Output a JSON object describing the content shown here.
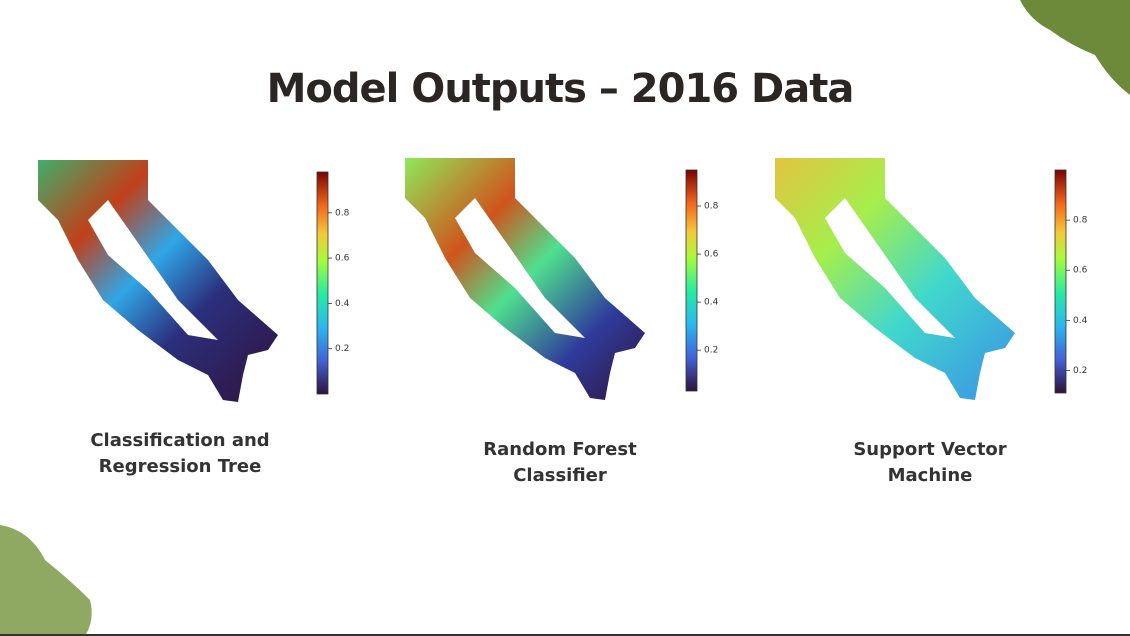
{
  "title": "Model Outputs – 2016 Data",
  "panels": [
    {
      "caption": [
        "Classification and",
        "Regression Tree"
      ],
      "colorbar": {
        "range": [
          0.0,
          0.98
        ],
        "ticks": [
          0.2,
          0.4,
          0.6,
          0.8
        ]
      }
    },
    {
      "caption": [
        "Random Forest",
        "Classifier"
      ],
      "colorbar": {
        "range": [
          0.03,
          0.95
        ],
        "ticks": [
          0.2,
          0.4,
          0.6,
          0.8
        ]
      }
    },
    {
      "caption": [
        "Support Vector",
        "Machine"
      ],
      "colorbar": {
        "range": [
          0.11,
          1.0
        ],
        "ticks": [
          0.2,
          0.4,
          0.6,
          0.8
        ]
      }
    }
  ]
}
